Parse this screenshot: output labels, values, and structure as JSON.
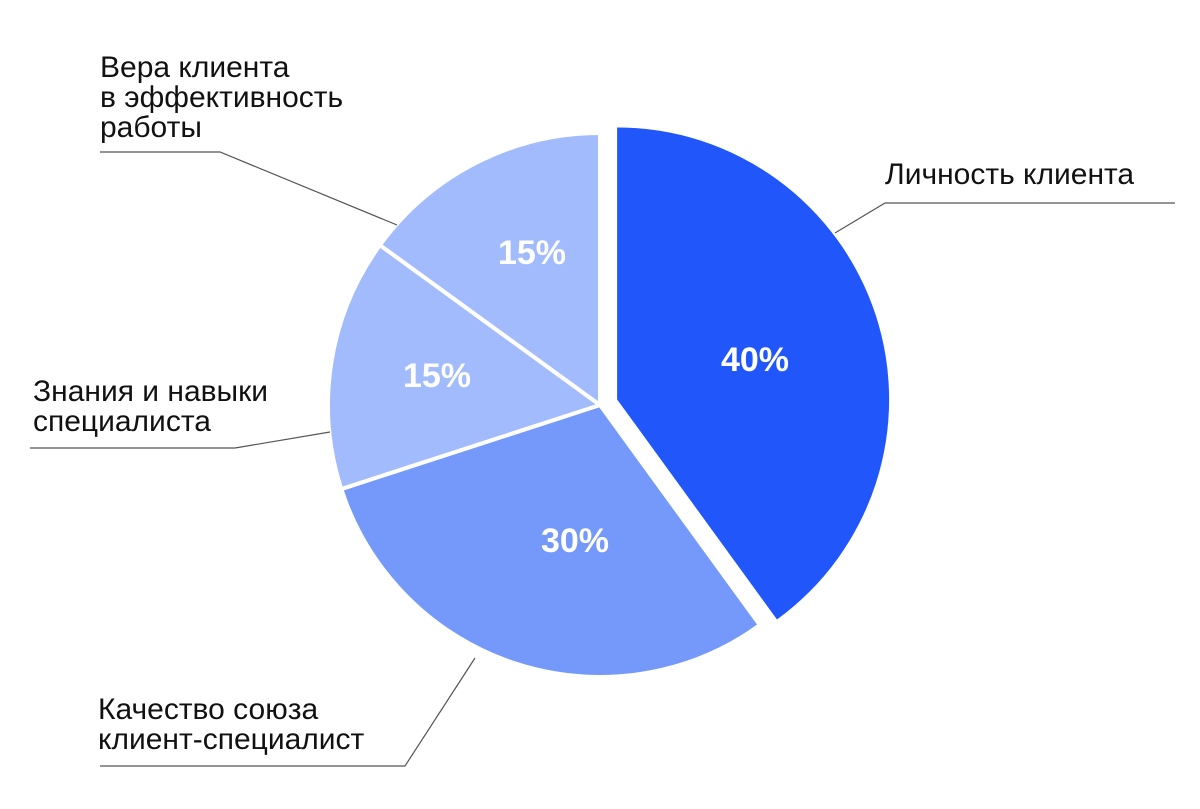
{
  "chart_data": {
    "type": "pie",
    "categories": [
      "Личность клиента",
      "Качество союза\nклиент-специалист",
      "Знания и навыки\nспециалиста",
      "Вера клиента\nв эффективность\nработы"
    ],
    "values": [
      40,
      30,
      15,
      15
    ],
    "value_labels": [
      "40%",
      "30%",
      "15%",
      "15%"
    ],
    "colors": [
      "#2157fa",
      "#7499fb",
      "#a2bbfd",
      "#a2bbfd"
    ],
    "exploded": [
      true,
      false,
      false,
      false
    ]
  }
}
